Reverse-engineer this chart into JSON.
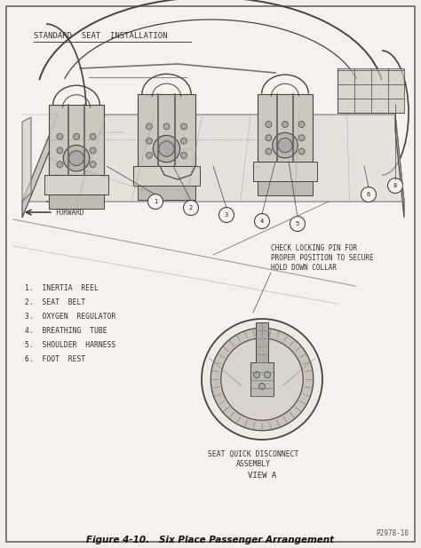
{
  "title": "Figure 4-10.   Six Place Passenger Arrangement",
  "header_text": "STANDARD  SEAT  INSTALLATION",
  "bg_color": "#f2efea",
  "paper_color": "#f5f2ed",
  "border_color": "#666666",
  "line_color": "#444444",
  "fig_width": 4.74,
  "fig_height": 6.17,
  "dpi": 100,
  "legend_items": [
    "1.  INERTIA  REEL",
    "2.  SEAT  BELT",
    "3.  OXYGEN  REGULATOR",
    "4.  BREATHING  TUBE",
    "5.  SHOULDER  HARNESS",
    "6.  FOOT  REST"
  ],
  "annotation_line1": "CHECK LOCKING PIN FOR",
  "annotation_line2": "PROPER POSITION TO SECURE",
  "annotation_line3": "HOLD DOWN COLLAR",
  "seat_quick_line1": "SEAT QUICK DISCONNECT",
  "seat_quick_line2": "ASSEMBLY",
  "view_a_text": "VIEW A",
  "part_number": "P2978-10",
  "forward_text": "FORWARD"
}
